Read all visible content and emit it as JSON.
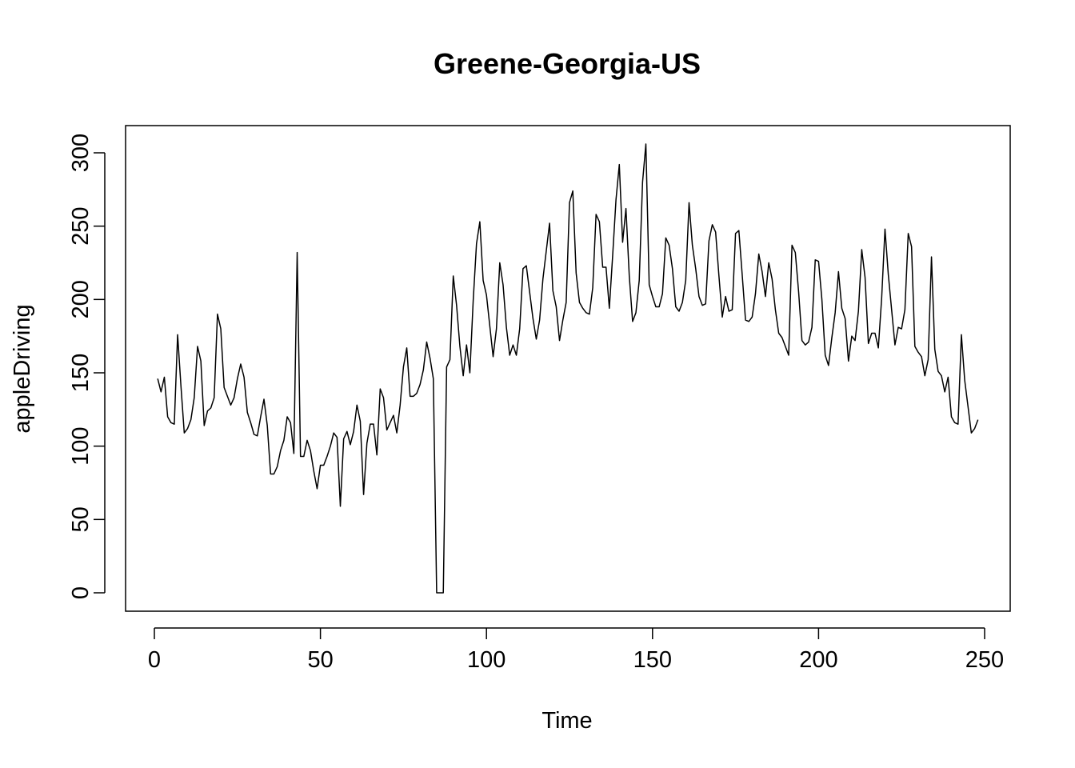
{
  "chart_data": {
    "type": "line",
    "title": "Greene-Georgia-US",
    "xlabel": "Time",
    "ylabel": "appleDriving",
    "xlim": [
      1,
      248
    ],
    "ylim": [
      0,
      306
    ],
    "x_ticks": [
      0,
      50,
      100,
      150,
      200,
      250
    ],
    "x_tick_labels": [
      "0",
      "50",
      "100",
      "150",
      "200",
      "250"
    ],
    "y_ticks": [
      0,
      50,
      100,
      150,
      200,
      250,
      300
    ],
    "y_tick_labels": [
      "0",
      "50",
      "100",
      "150",
      "200",
      "250",
      "300"
    ],
    "grid": false,
    "legend": "none",
    "line_color": "#000000",
    "series": [
      {
        "values": [
          146,
          137,
          147,
          120,
          116,
          115,
          176,
          141,
          109,
          112,
          118,
          133,
          168,
          158,
          114,
          124,
          126,
          133,
          190,
          180,
          140,
          134,
          128,
          133,
          146,
          156,
          147,
          123,
          116,
          108,
          107,
          120,
          132,
          114,
          81,
          81,
          86,
          97,
          104,
          120,
          116,
          95,
          232,
          93,
          93,
          104,
          97,
          83,
          71,
          87,
          87,
          93,
          100,
          109,
          106,
          59,
          105,
          110,
          101,
          110,
          128,
          117,
          67,
          102,
          115,
          115,
          94,
          139,
          133,
          111,
          116,
          121,
          109,
          128,
          154,
          167,
          134,
          134,
          136,
          142,
          152,
          171,
          160,
          146,
          0,
          0,
          0,
          154,
          159,
          216,
          196,
          168,
          148,
          169,
          150,
          199,
          238,
          253,
          213,
          203,
          182,
          161,
          180,
          225,
          210,
          181,
          162,
          169,
          162,
          180,
          221,
          223,
          205,
          187,
          173,
          186,
          214,
          233,
          252,
          206,
          195,
          172,
          186,
          198,
          266,
          274,
          218,
          198,
          194,
          191,
          190,
          208,
          258,
          253,
          222,
          222,
          194,
          230,
          268,
          292,
          239,
          262,
          216,
          185,
          191,
          213,
          280,
          306,
          210,
          202,
          195,
          195,
          204,
          242,
          237,
          221,
          195,
          192,
          198,
          213,
          266,
          237,
          221,
          202,
          196,
          197,
          240,
          251,
          246,
          216,
          188,
          202,
          192,
          193,
          245,
          247,
          217,
          186,
          185,
          188,
          204,
          231,
          219,
          202,
          225,
          214,
          193,
          177,
          174,
          168,
          162,
          237,
          232,
          205,
          172,
          169,
          171,
          181,
          227,
          226,
          200,
          162,
          155,
          174,
          191,
          219,
          194,
          187,
          158,
          175,
          172,
          192,
          234,
          215,
          170,
          177,
          177,
          167,
          201,
          248,
          217,
          193,
          169,
          181,
          180,
          193,
          245,
          236,
          168,
          164,
          161,
          148,
          159,
          229,
          166,
          151,
          148,
          137,
          147,
          120,
          116,
          115,
          176,
          145,
          127,
          109,
          112,
          118
        ]
      }
    ]
  }
}
